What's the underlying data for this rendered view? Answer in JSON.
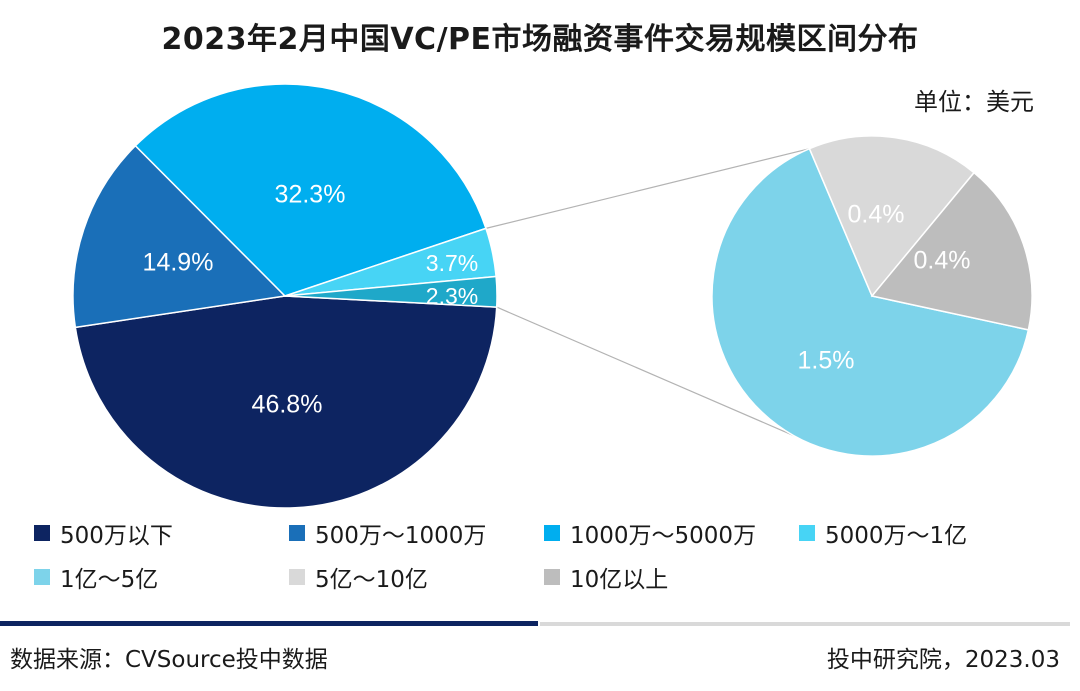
{
  "header": {
    "title": "2023年2月中国VC/PE市场融资事件交易规模区间分布",
    "unit": "单位：美元"
  },
  "footer": {
    "source": "数据来源：CVSource投中数据",
    "credit": "投中研究院，2023.03"
  },
  "chart_data": [
    {
      "type": "pie",
      "name": "main",
      "categories": [
        "500万以下",
        "500万～1000万",
        "1000万～5000万",
        "5000万～1亿",
        "1亿～5亿+"
      ],
      "values": [
        46.8,
        14.9,
        32.3,
        3.7,
        2.3
      ],
      "labels": [
        "46.8%",
        "14.9%",
        "32.3%",
        "3.7%",
        "2.3%"
      ],
      "colors": [
        "#0d2461",
        "#1a6fb8",
        "#00aeef",
        "#47d4f5",
        "#1fa8c9"
      ]
    },
    {
      "type": "pie",
      "name": "breakdown",
      "categories": [
        "1亿～5亿",
        "5亿～10亿",
        "10亿以上"
      ],
      "values": [
        1.5,
        0.4,
        0.4
      ],
      "labels": [
        "1.5%",
        "0.4%",
        "0.4%"
      ],
      "colors": [
        "#7dd3ea",
        "#d9d9d9",
        "#bdbdbd"
      ]
    }
  ],
  "legend": [
    {
      "label": "500万以下",
      "color": "#0d2461"
    },
    {
      "label": "500万～1000万",
      "color": "#1a6fb8"
    },
    {
      "label": "1000万～5000万",
      "color": "#00aeef"
    },
    {
      "label": "5000万～1亿",
      "color": "#47d4f5"
    },
    {
      "label": "1亿～5亿",
      "color": "#7dd3ea"
    },
    {
      "label": "5亿～10亿",
      "color": "#d9d9d9"
    },
    {
      "label": "10亿以上",
      "color": "#bdbdbd"
    }
  ]
}
